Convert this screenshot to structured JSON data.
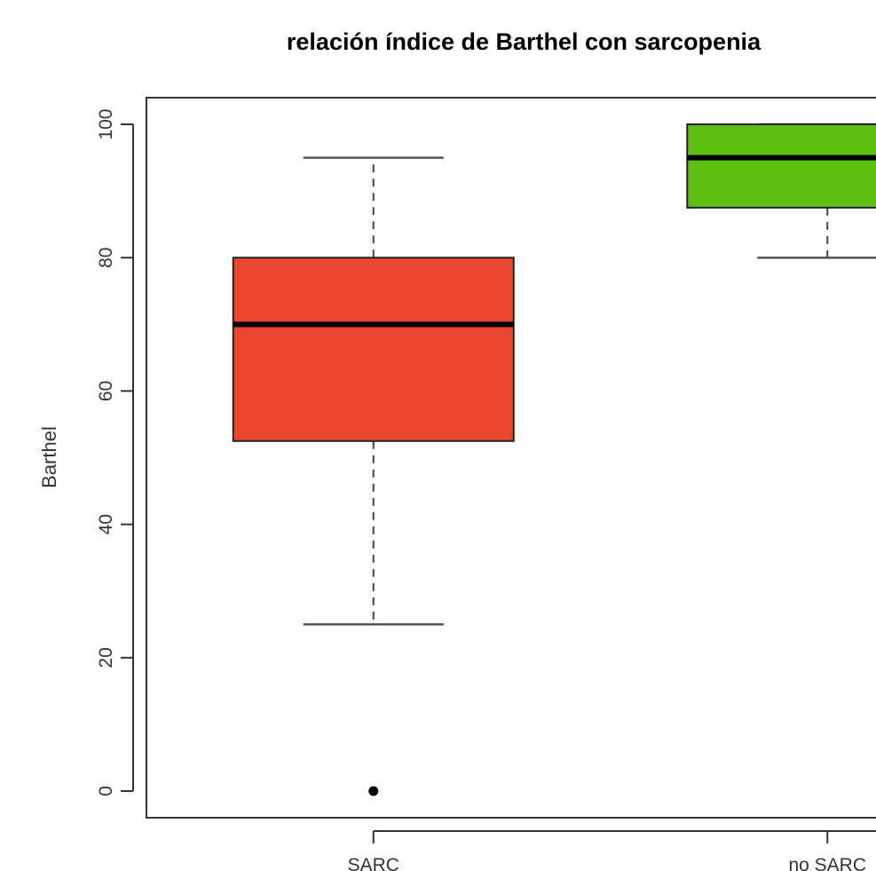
{
  "chart_data": {
    "type": "boxplot",
    "title": "relación índice de Barthel con sarcopenia",
    "xlabel": "",
    "ylabel": "Barthel",
    "ylim": [
      -4,
      104
    ],
    "yticks": [
      0,
      20,
      40,
      60,
      80,
      100
    ],
    "grid": false,
    "categories": [
      "SARC",
      "no SARC"
    ],
    "boxes": [
      {
        "category": "SARC",
        "whisker_low": 25,
        "q1": 52.5,
        "median": 70,
        "q3": 80,
        "whisker_high": 95,
        "outliers": [
          0
        ],
        "color": "#ea4630"
      },
      {
        "category": "no SARC",
        "whisker_low": 80,
        "q1": 87.5,
        "median": 95,
        "q3": 100,
        "whisker_high": 100,
        "outliers": [],
        "color": "#5bbf10"
      }
    ]
  }
}
